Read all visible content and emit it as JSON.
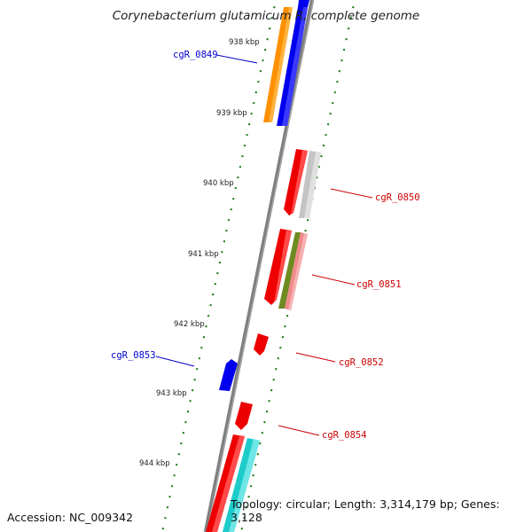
{
  "title": "Corynebacterium glutamicum R, complete genome",
  "footer": {
    "accession": "Accession: NC_009342",
    "topology": "Topology: circular; Length: 3,314,179 bp; Genes: 3,128"
  },
  "colors": {
    "backbone": "#808080",
    "tick": "#1a7a1a",
    "forward_label": "#0000cc",
    "reverse_label": "#cc0000",
    "red": "#ee0000",
    "blue": "#0000ee",
    "orange": "#ff9000",
    "gray": "#c4c4c4",
    "olive": "#6e8a20",
    "pink": "#f08a8a",
    "cyan": "#1ecbcb"
  },
  "kbp_marks": [
    "938 kbp",
    "939 kbp",
    "940 kbp",
    "941 kbp",
    "942 kbp",
    "943 kbp",
    "944 kbp"
  ],
  "gene_labels": [
    {
      "name": "cgR_0849",
      "side": "left",
      "color": "blue"
    },
    {
      "name": "cgR_0850",
      "side": "right",
      "color": "red"
    },
    {
      "name": "cgR_0851",
      "side": "right",
      "color": "red"
    },
    {
      "name": "cgR_0852",
      "side": "right",
      "color": "red"
    },
    {
      "name": "cgR_0853",
      "side": "left",
      "color": "blue"
    },
    {
      "name": "cgR_0854",
      "side": "right",
      "color": "red"
    }
  ]
}
